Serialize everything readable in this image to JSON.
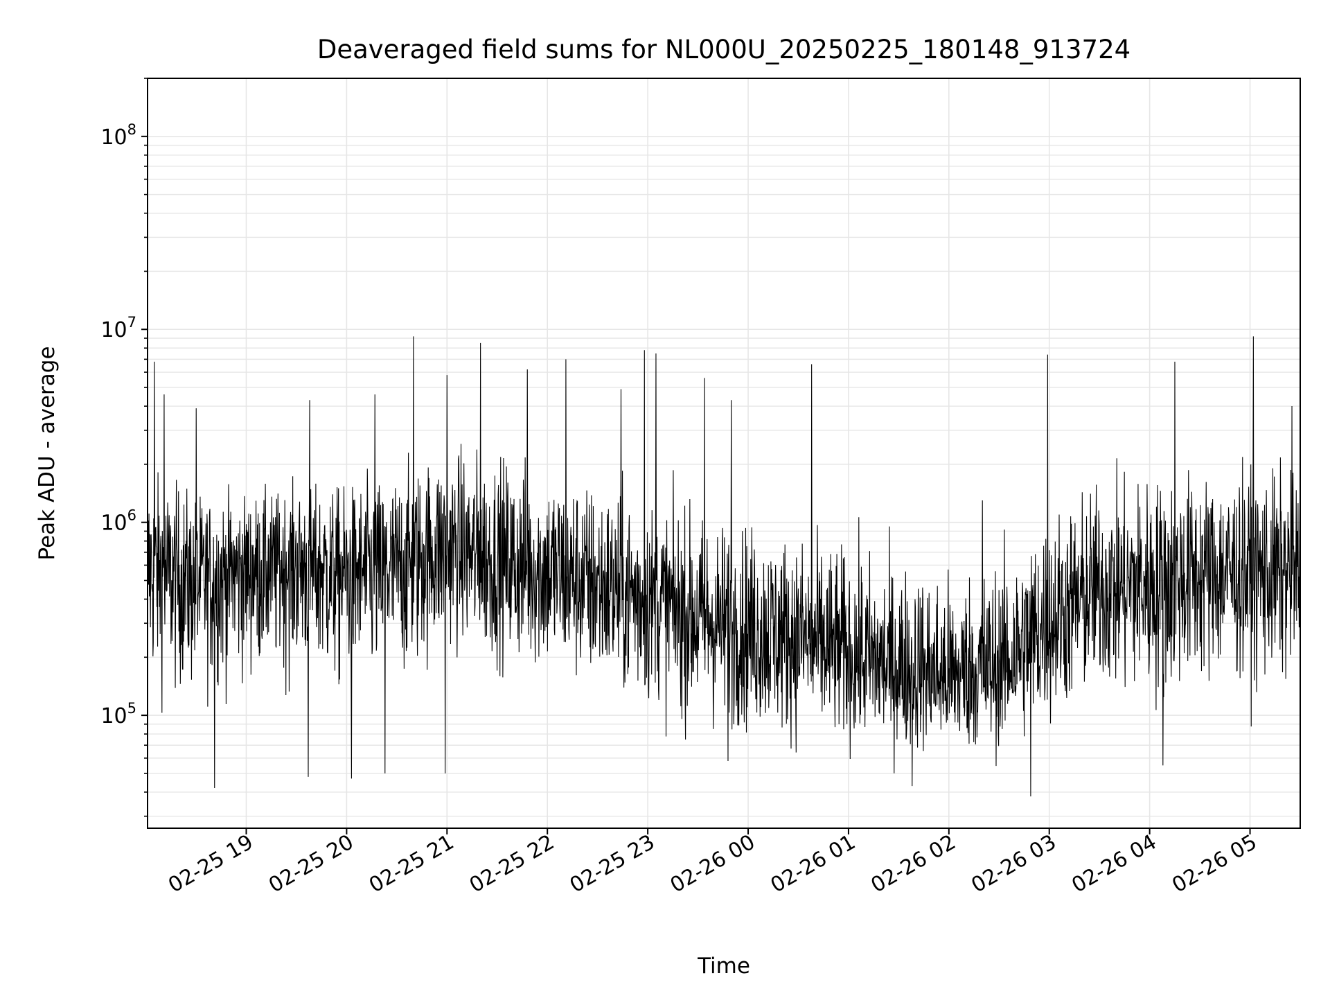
{
  "chart_data": {
    "type": "line",
    "title": "Deaveraged field sums for NL000U_20250225_180148_913724",
    "xlabel": "Time",
    "ylabel": "Peak ADU - average",
    "yscale": "log",
    "ylim": [
      26000,
      200000000
    ],
    "xlim": [
      "2025-02-25 18:01",
      "2025-02-26 05:30"
    ],
    "grid": true,
    "line_color": "#000000",
    "grid_color": "#e6e6e6",
    "x_ticks": [
      {
        "label": "02-25 19",
        "time": "2025-02-25 19:00"
      },
      {
        "label": "02-25 20",
        "time": "2025-02-25 20:00"
      },
      {
        "label": "02-25 21",
        "time": "2025-02-25 21:00"
      },
      {
        "label": "02-25 22",
        "time": "2025-02-25 22:00"
      },
      {
        "label": "02-25 23",
        "time": "2025-02-25 23:00"
      },
      {
        "label": "02-26 00",
        "time": "2025-02-26 00:00"
      },
      {
        "label": "02-26 01",
        "time": "2025-02-26 01:00"
      },
      {
        "label": "02-26 02",
        "time": "2025-02-26 02:00"
      },
      {
        "label": "02-26 03",
        "time": "2025-02-26 03:00"
      },
      {
        "label": "02-26 04",
        "time": "2025-02-26 04:00"
      },
      {
        "label": "02-26 05",
        "time": "2025-02-26 05:00"
      }
    ],
    "y_ticks": [
      {
        "base": "10",
        "exp": "5",
        "value": 100000
      },
      {
        "base": "10",
        "exp": "6",
        "value": 1000000
      },
      {
        "base": "10",
        "exp": "7",
        "value": 10000000
      },
      {
        "base": "10",
        "exp": "8",
        "value": 100000000
      }
    ],
    "series_envelope": {
      "times": [
        "2025-02-25 18:01",
        "2025-02-25 18:30",
        "2025-02-25 19:00",
        "2025-02-25 19:30",
        "2025-02-25 20:00",
        "2025-02-25 20:30",
        "2025-02-25 21:00",
        "2025-02-25 21:30",
        "2025-02-25 22:00",
        "2025-02-25 22:30",
        "2025-02-25 23:00",
        "2025-02-25 23:30",
        "2025-02-26 00:00",
        "2025-02-26 00:30",
        "2025-02-26 01:00",
        "2025-02-26 01:30",
        "2025-02-26 02:00",
        "2025-02-26 02:30",
        "2025-02-26 03:00",
        "2025-02-26 03:30",
        "2025-02-26 04:00",
        "2025-02-26 04:30",
        "2025-02-26 05:00",
        "2025-02-26 05:30"
      ],
      "median": [
        600000,
        500000,
        600000,
        650000,
        550000,
        600000,
        750000,
        600000,
        550000,
        480000,
        400000,
        320000,
        280000,
        250000,
        200000,
        170000,
        150000,
        170000,
        300000,
        450000,
        500000,
        550000,
        550000,
        550000
      ],
      "typical_low": [
        200000,
        180000,
        220000,
        220000,
        180000,
        200000,
        300000,
        250000,
        220000,
        180000,
        150000,
        120000,
        110000,
        100000,
        90000,
        80000,
        80000,
        80000,
        120000,
        180000,
        150000,
        200000,
        200000,
        200000
      ],
      "typical_high": [
        1500000,
        1200000,
        1200000,
        1300000,
        1300000,
        1500000,
        2000000,
        1800000,
        1600000,
        1300000,
        1100000,
        900000,
        800000,
        700000,
        600000,
        500000,
        450000,
        500000,
        900000,
        1300000,
        1400000,
        1500000,
        1500000,
        1500000
      ]
    },
    "spikes": [
      {
        "time": "2025-02-25 18:05",
        "value": 6800000
      },
      {
        "time": "2025-02-25 18:11",
        "value": 4600000
      },
      {
        "time": "2025-02-25 18:30",
        "value": 3900000
      },
      {
        "time": "2025-02-25 19:38",
        "value": 4300000
      },
      {
        "time": "2025-02-25 20:17",
        "value": 4600000
      },
      {
        "time": "2025-02-25 20:40",
        "value": 9200000
      },
      {
        "time": "2025-02-25 21:00",
        "value": 5800000
      },
      {
        "time": "2025-02-25 21:20",
        "value": 8500000
      },
      {
        "time": "2025-02-25 21:48",
        "value": 6200000
      },
      {
        "time": "2025-02-25 22:11",
        "value": 7000000
      },
      {
        "time": "2025-02-25 22:44",
        "value": 4900000
      },
      {
        "time": "2025-02-25 22:58",
        "value": 7800000
      },
      {
        "time": "2025-02-25 23:05",
        "value": 7500000
      },
      {
        "time": "2025-02-25 23:34",
        "value": 5600000
      },
      {
        "time": "2025-02-25 23:50",
        "value": 4300000
      },
      {
        "time": "2025-02-26 00:38",
        "value": 6600000
      },
      {
        "time": "2025-02-26 02:20",
        "value": 1300000
      },
      {
        "time": "2025-02-26 02:59",
        "value": 7400000
      },
      {
        "time": "2025-02-26 04:15",
        "value": 6800000
      },
      {
        "time": "2025-02-26 05:02",
        "value": 9200000
      },
      {
        "time": "2025-02-26 05:25",
        "value": 4000000
      }
    ],
    "dips": [
      {
        "time": "2025-02-25 18:41",
        "value": 42000
      },
      {
        "time": "2025-02-25 19:37",
        "value": 48000
      },
      {
        "time": "2025-02-25 20:03",
        "value": 47000
      },
      {
        "time": "2025-02-25 20:23",
        "value": 50000
      },
      {
        "time": "2025-02-25 20:59",
        "value": 50000
      },
      {
        "time": "2025-02-25 23:48",
        "value": 58000
      },
      {
        "time": "2025-02-26 01:38",
        "value": 43000
      },
      {
        "time": "2025-02-26 02:49",
        "value": 38000
      },
      {
        "time": "2025-02-26 04:08",
        "value": 55000
      }
    ]
  }
}
